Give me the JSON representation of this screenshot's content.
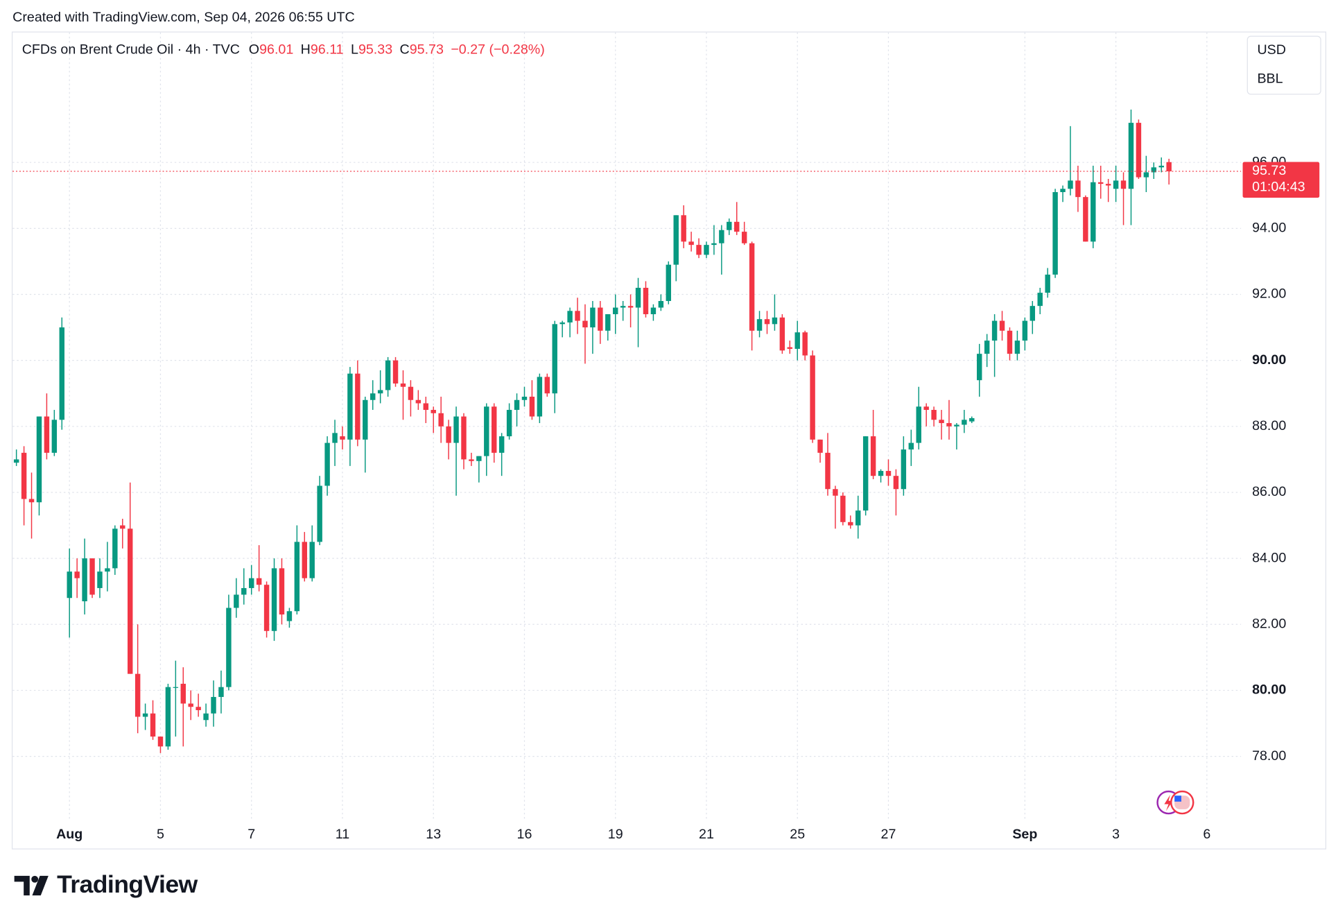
{
  "header": {
    "created": "Created with TradingView.com, Sep 04, 2026 06:55 UTC"
  },
  "chart_data": {
    "type": "candlestick",
    "title": "CFDs on Brent Crude Oil · 4h · TVC",
    "legend_labels": {
      "open": "O",
      "high": "H",
      "low": "L",
      "close": "C"
    },
    "change": "−0.27 (−0.28%)",
    "currency": "USD",
    "unit": "BBL",
    "countdown": "01:04:43",
    "up_color": "#089981",
    "down_color": "#f23645",
    "grid": true,
    "categories": [
      null,
      null,
      null,
      null,
      null,
      null,
      null,
      "Aug",
      null,
      null,
      null,
      null,
      null,
      null,
      null,
      null,
      null,
      null,
      null,
      "5",
      null,
      null,
      null,
      null,
      null,
      null,
      null,
      null,
      null,
      null,
      null,
      "7",
      null,
      null,
      null,
      null,
      null,
      null,
      null,
      null,
      null,
      null,
      null,
      "11",
      null,
      null,
      null,
      null,
      null,
      null,
      null,
      null,
      null,
      null,
      null,
      "13",
      null,
      null,
      null,
      null,
      null,
      null,
      null,
      null,
      null,
      null,
      null,
      "16",
      null,
      null,
      null,
      null,
      null,
      null,
      null,
      null,
      null,
      null,
      null,
      "19",
      null,
      null,
      null,
      null,
      null,
      null,
      null,
      null,
      null,
      null,
      null,
      "21",
      null,
      null,
      null,
      null,
      null,
      null,
      null,
      null,
      null,
      null,
      null,
      "25",
      null,
      null,
      null,
      null,
      null,
      null,
      null,
      null,
      null,
      null,
      null,
      "27",
      null,
      null,
      null,
      null,
      null,
      null,
      null,
      null,
      null,
      null,
      null,
      null,
      null,
      null,
      null,
      null,
      null,
      "Sep",
      null,
      null,
      null,
      null,
      null,
      null,
      null,
      null,
      null,
      null,
      null,
      "3",
      null,
      null,
      null,
      null,
      null,
      null,
      null,
      null,
      null,
      null,
      null,
      "6",
      null,
      null,
      null,
      null
    ],
    "open": [
      86.9,
      87.2,
      85.8,
      85.7,
      88.3,
      87.2,
      88.2,
      82.8,
      83.6,
      82.7,
      84.0,
      83.1,
      83.6,
      83.7,
      85.0,
      84.9,
      80.5,
      79.2,
      79.3,
      78.6,
      78.3,
      80.1,
      80.2,
      79.6,
      79.5,
      79.1,
      79.3,
      79.8,
      80.1,
      82.5,
      82.9,
      83.1,
      83.4,
      83.2,
      81.8,
      83.7,
      82.1,
      82.4,
      84.5,
      83.4,
      84.5,
      86.2,
      87.5,
      87.7,
      87.6,
      89.6,
      87.6,
      88.8,
      89.0,
      89.1,
      90.0,
      89.3,
      89.2,
      88.8,
      88.7,
      88.5,
      88.4,
      88.0,
      87.5,
      88.3,
      87.0,
      86.95,
      87.1,
      88.6,
      87.2,
      87.7,
      88.5,
      88.8,
      88.9,
      88.3,
      89.5,
      89.0,
      91.1,
      91.15,
      91.5,
      91.2,
      91.0,
      91.6,
      90.9,
      91.4,
      91.6,
      91.65,
      91.6,
      92.2,
      91.4,
      91.6,
      91.8,
      92.9,
      94.4,
      93.6,
      93.5,
      93.2,
      93.5,
      93.55,
      93.95,
      94.2,
      93.9,
      93.55,
      90.9,
      91.25,
      91.1,
      91.3,
      90.4,
      90.35,
      90.85,
      90.15,
      87.6,
      87.2,
      86.1,
      85.9,
      85.1,
      85.0,
      85.45,
      87.7,
      86.5,
      86.65,
      86.5,
      86.1,
      87.3,
      87.5,
      88.6,
      88.5,
      88.2,
      88.1,
      88.0,
      88.05,
      88.15,
      89.4,
      90.2,
      90.6,
      91.2,
      90.9,
      90.2,
      90.6,
      91.2,
      91.65,
      92.05,
      92.6,
      95.1,
      95.2,
      95.45,
      94.95,
      93.6,
      95.4,
      95.35,
      95.2,
      95.45,
      95.2,
      97.2,
      95.55,
      95.7,
      95.85,
      96.01,
      null,
      null,
      null,
      null,
      null,
      null,
      null,
      null,
      null
    ],
    "high": [
      87.3,
      87.4,
      86.6,
      88.3,
      89.0,
      88.5,
      91.3,
      84.3,
      84.0,
      84.6,
      84.0,
      84.0,
      84.5,
      85.0,
      85.2,
      86.3,
      82.0,
      79.6,
      79.7,
      78.6,
      80.2,
      80.9,
      80.7,
      80.0,
      79.9,
      79.6,
      80.3,
      80.6,
      82.9,
      83.4,
      83.7,
      83.8,
      84.4,
      83.3,
      84.0,
      84.0,
      82.5,
      85.0,
      84.8,
      85.0,
      86.5,
      87.7,
      88.2,
      88.0,
      89.8,
      90.0,
      88.9,
      89.4,
      89.7,
      90.1,
      90.1,
      89.7,
      89.4,
      89.1,
      88.9,
      88.6,
      88.9,
      88.2,
      88.6,
      88.4,
      87.2,
      87.1,
      88.7,
      88.7,
      87.8,
      88.7,
      89.0,
      89.2,
      89.4,
      89.6,
      89.6,
      91.2,
      91.2,
      91.6,
      91.9,
      91.7,
      91.8,
      91.8,
      91.4,
      92.0,
      91.8,
      92.0,
      92.5,
      92.4,
      91.7,
      92.0,
      93.0,
      94.4,
      94.7,
      93.9,
      93.7,
      93.6,
      94.1,
      94.1,
      94.3,
      94.8,
      94.2,
      93.6,
      91.5,
      91.5,
      92.0,
      91.4,
      90.6,
      91.2,
      90.9,
      90.3,
      87.6,
      87.8,
      86.2,
      86.0,
      85.3,
      85.9,
      87.7,
      88.5,
      86.7,
      87.0,
      86.7,
      87.7,
      87.9,
      89.2,
      88.7,
      88.6,
      88.5,
      88.8,
      88.1,
      88.5,
      88.3,
      90.5,
      90.8,
      91.4,
      91.5,
      91.0,
      90.9,
      91.3,
      91.8,
      92.2,
      92.8,
      95.2,
      95.3,
      97.1,
      95.9,
      95.0,
      95.9,
      95.9,
      95.5,
      95.9,
      95.7,
      97.6,
      97.3,
      96.2,
      96.0,
      96.15,
      96.11,
      null,
      null,
      null,
      null,
      null,
      null,
      null,
      null,
      null
    ],
    "low": [
      86.8,
      85.0,
      84.6,
      85.3,
      87.0,
      87.1,
      87.9,
      81.6,
      82.8,
      82.3,
      82.8,
      82.8,
      83.0,
      83.5,
      84.3,
      80.5,
      78.7,
      78.8,
      78.5,
      78.1,
      78.2,
      78.6,
      78.3,
      79.1,
      79.2,
      78.9,
      78.9,
      79.3,
      80.0,
      82.2,
      82.6,
      82.9,
      83.0,
      81.6,
      81.5,
      82.0,
      81.9,
      82.3,
      83.3,
      83.3,
      84.4,
      85.9,
      86.8,
      87.3,
      86.8,
      87.4,
      86.6,
      88.5,
      88.7,
      88.9,
      89.2,
      88.2,
      88.3,
      88.5,
      88.1,
      87.8,
      87.5,
      87.0,
      85.9,
      86.7,
      86.8,
      86.3,
      86.5,
      86.9,
      86.5,
      87.6,
      88.0,
      88.6,
      88.2,
      88.1,
      88.9,
      88.4,
      90.7,
      90.7,
      90.8,
      89.9,
      90.2,
      90.5,
      90.6,
      90.8,
      91.2,
      91.0,
      90.4,
      91.3,
      91.2,
      91.5,
      91.7,
      92.4,
      93.4,
      93.3,
      93.1,
      93.1,
      93.2,
      92.6,
      93.8,
      93.8,
      93.5,
      90.3,
      90.7,
      90.8,
      90.9,
      90.2,
      90.2,
      90.0,
      90.0,
      87.5,
      86.9,
      85.9,
      84.9,
      85.0,
      84.9,
      84.6,
      85.3,
      86.4,
      86.3,
      86.2,
      85.3,
      85.9,
      86.8,
      87.3,
      88.0,
      88.0,
      87.6,
      87.6,
      87.3,
      87.8,
      88.1,
      88.9,
      89.8,
      89.5,
      90.6,
      90.0,
      90.0,
      90.3,
      90.8,
      91.4,
      91.9,
      92.5,
      94.8,
      95.0,
      94.5,
      93.6,
      93.4,
      94.9,
      94.8,
      94.8,
      94.1,
      94.1,
      95.5,
      95.1,
      95.5,
      95.7,
      95.33,
      null,
      null,
      null,
      null,
      null,
      null,
      null,
      null,
      null
    ],
    "close": [
      87.0,
      85.8,
      85.7,
      88.3,
      87.2,
      88.2,
      91.0,
      83.6,
      83.4,
      84.0,
      82.9,
      83.6,
      83.7,
      84.9,
      84.9,
      80.5,
      79.2,
      79.3,
      78.6,
      78.3,
      80.1,
      80.1,
      79.6,
      79.5,
      79.4,
      79.3,
      79.8,
      80.1,
      82.5,
      82.9,
      83.1,
      83.4,
      83.2,
      81.8,
      83.7,
      82.3,
      82.4,
      84.5,
      83.4,
      84.5,
      86.2,
      87.5,
      87.8,
      87.6,
      89.6,
      87.6,
      88.8,
      89.0,
      89.1,
      90.0,
      89.3,
      89.2,
      88.8,
      88.7,
      88.5,
      88.4,
      88.0,
      87.5,
      88.3,
      87.0,
      86.95,
      87.1,
      88.6,
      87.2,
      87.7,
      88.5,
      88.8,
      88.9,
      88.3,
      89.5,
      89.0,
      91.1,
      91.15,
      91.5,
      91.2,
      91.0,
      91.6,
      90.9,
      91.4,
      91.6,
      91.65,
      91.6,
      92.2,
      91.4,
      91.6,
      91.8,
      92.9,
      94.4,
      93.6,
      93.5,
      93.2,
      93.5,
      93.55,
      93.95,
      94.2,
      93.9,
      93.55,
      90.9,
      91.25,
      91.1,
      91.3,
      90.3,
      90.35,
      90.85,
      90.15,
      87.6,
      87.2,
      86.1,
      85.9,
      85.1,
      85.0,
      85.45,
      87.7,
      86.5,
      86.65,
      86.5,
      86.1,
      87.3,
      87.5,
      88.6,
      88.5,
      88.2,
      88.1,
      88.0,
      88.05,
      88.2,
      88.25,
      90.2,
      90.6,
      91.2,
      90.9,
      90.2,
      90.6,
      91.2,
      91.65,
      92.05,
      92.6,
      95.1,
      95.2,
      95.45,
      94.95,
      93.6,
      95.4,
      95.35,
      95.3,
      95.45,
      95.2,
      97.2,
      95.55,
      95.7,
      95.85,
      95.9,
      95.73,
      null,
      null,
      null,
      null,
      null,
      null,
      null,
      null,
      null
    ],
    "ylim": [
      76.06,
      99.94
    ],
    "yticks": [
      {
        "value": 78,
        "label": "78.00"
      },
      {
        "value": 80,
        "label": "80.00"
      },
      {
        "value": 82,
        "label": "82.00"
      },
      {
        "value": 84,
        "label": "84.00"
      },
      {
        "value": 86,
        "label": "86.00"
      },
      {
        "value": 88,
        "label": "88.00"
      },
      {
        "value": 90,
        "label": "90.00"
      },
      {
        "value": 92,
        "label": "92.00"
      },
      {
        "value": 94,
        "label": "94.00"
      },
      {
        "value": 96,
        "label": "96.00"
      }
    ]
  },
  "footer": {
    "logo": "TradingView"
  }
}
